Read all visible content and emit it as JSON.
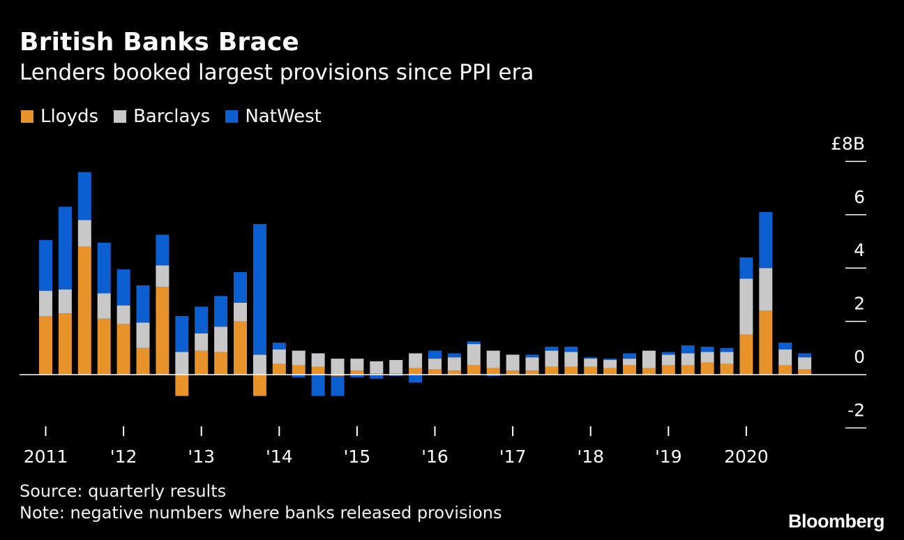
{
  "chart_data": {
    "type": "bar",
    "stacked": true,
    "title": "British Banks Brace",
    "subtitle": "Lenders booked largest provisions since PPI era",
    "y_unit_label": "£8B",
    "ylim": [
      -2,
      8
    ],
    "yticks": [
      {
        "value": 8,
        "label": "£8B"
      },
      {
        "value": 6,
        "label": "6"
      },
      {
        "value": 4,
        "label": "4"
      },
      {
        "value": 2,
        "label": "2"
      },
      {
        "value": 0,
        "label": "0"
      },
      {
        "value": -2,
        "label": "-2"
      }
    ],
    "x_labels": [
      {
        "index": 0,
        "label": "2011"
      },
      {
        "index": 4,
        "label": "'12"
      },
      {
        "index": 8,
        "label": "'13"
      },
      {
        "index": 12,
        "label": "'14"
      },
      {
        "index": 16,
        "label": "'15"
      },
      {
        "index": 20,
        "label": "'16"
      },
      {
        "index": 24,
        "label": "'17"
      },
      {
        "index": 28,
        "label": "'18"
      },
      {
        "index": 32,
        "label": "'19"
      },
      {
        "index": 36,
        "label": "2020"
      }
    ],
    "categories": [
      "Q1 2011",
      "Q2 2011",
      "Q3 2011",
      "Q4 2011",
      "Q1 2012",
      "Q2 2012",
      "Q3 2012",
      "Q4 2012",
      "Q1 2013",
      "Q2 2013",
      "Q3 2013",
      "Q4 2013",
      "Q1 2014",
      "Q2 2014",
      "Q3 2014",
      "Q4 2014",
      "Q1 2015",
      "Q2 2015",
      "Q3 2015",
      "Q4 2015",
      "Q1 2016",
      "Q2 2016",
      "Q3 2016",
      "Q4 2016",
      "Q1 2017",
      "Q2 2017",
      "Q3 2017",
      "Q4 2017",
      "Q1 2018",
      "Q2 2018",
      "Q3 2018",
      "Q4 2018",
      "Q1 2019",
      "Q2 2019",
      "Q3 2019",
      "Q4 2019",
      "Q1 2020",
      "Q2 2020",
      "Q3 2020",
      "Q4 2020"
    ],
    "series": [
      {
        "name": "Lloyds",
        "color": "#e8922a",
        "values": [
          2.2,
          2.3,
          4.8,
          2.1,
          1.9,
          1.0,
          3.3,
          -0.8,
          0.9,
          0.85,
          2.0,
          -0.8,
          0.4,
          0.35,
          0.3,
          -0.05,
          0.15,
          0.05,
          0.05,
          0.25,
          0.2,
          0.15,
          0.35,
          0.25,
          0.15,
          0.15,
          0.3,
          0.3,
          0.3,
          0.25,
          0.35,
          0.25,
          0.35,
          0.35,
          0.45,
          0.4,
          1.5,
          2.4,
          0.35,
          0.2
        ]
      },
      {
        "name": "Barclays",
        "color": "#c8c8c8",
        "values": [
          0.95,
          0.9,
          1.0,
          0.95,
          0.7,
          0.95,
          0.8,
          0.85,
          0.65,
          0.95,
          0.7,
          0.75,
          0.55,
          0.55,
          0.5,
          0.6,
          0.45,
          0.45,
          0.5,
          0.55,
          0.4,
          0.5,
          0.8,
          0.65,
          0.6,
          0.5,
          0.6,
          0.55,
          0.3,
          0.3,
          0.25,
          0.65,
          0.4,
          0.45,
          0.4,
          0.45,
          2.1,
          1.6,
          0.6,
          0.45
        ]
      },
      {
        "name": "NatWest",
        "color": "#0b5fd1",
        "values": [
          1.9,
          3.1,
          1.8,
          1.9,
          1.35,
          1.4,
          1.15,
          1.35,
          1.0,
          1.15,
          1.15,
          4.9,
          0.25,
          -0.1,
          -0.8,
          -0.75,
          -0.1,
          -0.15,
          -0.05,
          -0.3,
          0.3,
          0.15,
          0.1,
          -0.05,
          0.0,
          0.1,
          0.15,
          0.2,
          0.05,
          0.05,
          0.2,
          0.0,
          0.1,
          0.3,
          0.2,
          0.15,
          0.8,
          2.1,
          0.25,
          0.15
        ]
      }
    ],
    "grid": false,
    "legend_position": "top-left"
  },
  "footer": {
    "source": "Source: quarterly results",
    "note": "Note: negative numbers where banks released provisions"
  },
  "brand": "Bloomberg",
  "colors": {
    "background": "#000000",
    "text": "#ffffff",
    "axis": "#ffffff"
  }
}
